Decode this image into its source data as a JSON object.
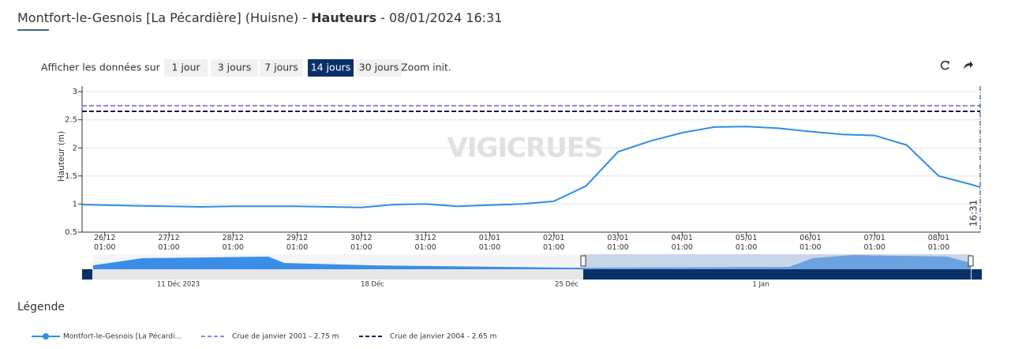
{
  "header": {
    "title_start": "Montfort-le-Gesnois [La Pécardière] (Huisne) - ",
    "title_bold": "Hauteurs",
    "title_end": " - 08/01/2024 16:31"
  },
  "controls": {
    "label": "Afficher les données sur :",
    "buttons": [
      "1 jour",
      "3 jours",
      "7 jours",
      "14 jours",
      "30 jours",
      "Zoom init."
    ],
    "active": 3
  },
  "legend_title": "Légende",
  "navigator": {
    "labels": [
      "11 Déc 2023",
      "18 Déc",
      "25 Déc",
      "1 Jan"
    ]
  },
  "chart_data": {
    "type": "line",
    "y_label": "Hauteur (m)",
    "watermark": "VIGICRUES",
    "now_label": "16:31",
    "x": [
      "25/12 16:31",
      "26/12 01:00",
      "26/12 13:00",
      "27/12 01:00",
      "27/12 13:00",
      "28/12 01:00",
      "28/12 13:00",
      "29/12 01:00",
      "29/12 13:00",
      "30/12 01:00",
      "30/12 13:00",
      "31/12 01:00",
      "31/12 13:00",
      "01/01 01:00",
      "01/01 13:00",
      "02/01 01:00",
      "02/01 13:00",
      "03/01 01:00",
      "03/01 13:00",
      "04/01 01:00",
      "04/01 13:00",
      "05/01 01:00",
      "05/01 13:00",
      "06/01 01:00",
      "06/01 13:00",
      "07/01 01:00",
      "07/01 13:00",
      "08/01 01:00",
      "08/01 13:00",
      "08/01 16:31"
    ],
    "series": [
      {
        "name": "Montfort-le-Gesnois [La Pécardi...",
        "color": "#2f8ee5",
        "values": [
          0.99,
          0.98,
          0.97,
          0.96,
          0.95,
          0.96,
          0.96,
          0.96,
          0.95,
          0.94,
          0.99,
          1.0,
          0.96,
          0.98,
          1.0,
          1.05,
          1.32,
          1.93,
          2.12,
          2.27,
          2.37,
          2.38,
          2.35,
          2.29,
          2.24,
          2.22,
          2.05,
          1.5,
          1.35,
          1.3
        ]
      }
    ],
    "thresholds": [
      {
        "name": "Crue de janvier 2001 - 2.75 m",
        "value": 2.75,
        "color": "#8f84e6"
      },
      {
        "name": "Crue de janvier 2004 - 2.65 m",
        "value": 2.65,
        "color": "#0b1f4d"
      }
    ],
    "xlim": [
      "25/12 16:31",
      "08/01 16:31"
    ],
    "xticks": [
      "26/12 01:00",
      "27/12 01:00",
      "28/12 01:00",
      "29/12 01:00",
      "30/12 01:00",
      "31/12 01:00",
      "01/01 01:00",
      "02/01 01:00",
      "03/01 01:00",
      "04/01 01:00",
      "05/01 01:00",
      "06/01 01:00",
      "07/01 01:00",
      "08/01 01:00"
    ],
    "ylim": [
      0.5,
      3.1
    ],
    "yticks": [
      0.5,
      1,
      1.5,
      2,
      2.5,
      3
    ],
    "grid": true
  }
}
